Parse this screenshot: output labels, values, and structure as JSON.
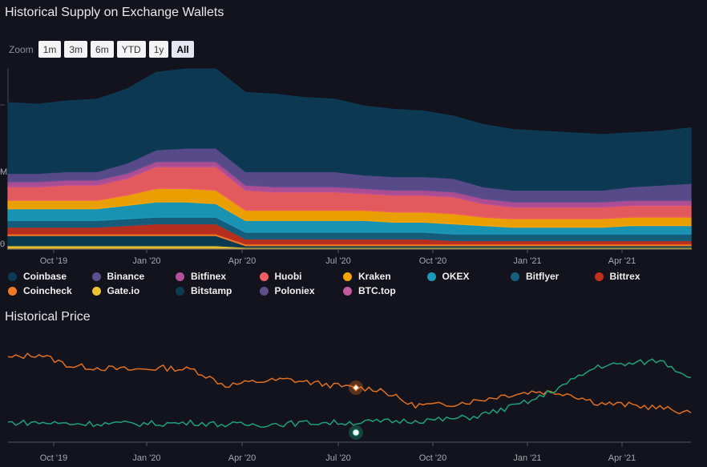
{
  "supply_section": {
    "title": "Historical Supply on Exchange Wallets",
    "zoom_label": "Zoom",
    "zoom_buttons": [
      "1m",
      "3m",
      "6m",
      "YTD",
      "1y",
      "All"
    ],
    "active_zoom": "All",
    "y_tick_labels": [
      "",
      "M",
      "0"
    ]
  },
  "price_section": {
    "title": "Historical Price"
  },
  "x_tick_labels": [
    "Oct '19",
    "Jan '20",
    "Apr '20",
    "Jul '20",
    "Oct '20",
    "Jan '21",
    "Apr '21"
  ],
  "legend": [
    {
      "name": "Coinbase",
      "color": "#0e3a55"
    },
    {
      "name": "Binance",
      "color": "#5b4e8e"
    },
    {
      "name": "Bitfinex",
      "color": "#b4509a"
    },
    {
      "name": "Huobi",
      "color": "#ee5e62"
    },
    {
      "name": "Kraken",
      "color": "#f6a500"
    },
    {
      "name": "OKEX",
      "color": "#1b9abb"
    },
    {
      "name": "Bitflyer",
      "color": "#15607e"
    },
    {
      "name": "Bittrex",
      "color": "#c0301f"
    },
    {
      "name": "Coincheck",
      "color": "#f47b25"
    },
    {
      "name": "Gate.io",
      "color": "#f0c330"
    },
    {
      "name": "Bitstamp",
      "color": "#0b3c52"
    },
    {
      "name": "Poloniex",
      "color": "#5e4e8c"
    },
    {
      "name": "BTC.top",
      "color": "#c45aa0"
    }
  ],
  "chart_data": [
    {
      "type": "area",
      "stacked": true,
      "x": [
        "2019-08",
        "2019-09",
        "2019-10",
        "2019-11",
        "2019-12",
        "2020-01",
        "2020-02",
        "2020-03",
        "2020-03-15",
        "2020-04",
        "2020-05",
        "2020-06",
        "2020-07",
        "2020-08",
        "2020-09",
        "2020-10",
        "2020-11",
        "2020-12",
        "2021-01",
        "2021-02",
        "2021-03",
        "2021-04",
        "2021-05",
        "2021-06"
      ],
      "series": [
        {
          "name": "Gate.io",
          "color": "#f0c330",
          "values": [
            2,
            2,
            2,
            2,
            2,
            2,
            2,
            2,
            1,
            1,
            1,
            1,
            1,
            1,
            1,
            1,
            1,
            1,
            1,
            1,
            1,
            1,
            1,
            1
          ]
        },
        {
          "name": "Bitstamp",
          "color": "#0b3c52",
          "values": [
            6,
            6,
            6,
            6,
            6,
            6,
            6,
            6,
            1,
            1,
            1,
            1,
            1,
            1,
            1,
            1,
            1,
            1,
            1,
            1,
            1,
            1,
            1,
            1
          ]
        },
        {
          "name": "Coincheck",
          "color": "#f47b25",
          "values": [
            1,
            1,
            1,
            1,
            1,
            1,
            1,
            1,
            1,
            1,
            1,
            1,
            1,
            1,
            1,
            1,
            1,
            1,
            1,
            1,
            1,
            1,
            1,
            1
          ]
        },
        {
          "name": "Bittrex",
          "color": "#c0301f",
          "values": [
            4,
            4,
            4,
            4,
            5,
            6,
            6,
            6,
            3,
            3,
            3,
            3,
            3,
            3,
            3,
            2,
            2,
            2,
            2,
            2,
            2,
            2,
            2,
            2
          ]
        },
        {
          "name": "Bitflyer",
          "color": "#15607e",
          "values": [
            4,
            4,
            4,
            4,
            4,
            4,
            4,
            4,
            4,
            4,
            4,
            4,
            4,
            4,
            4,
            4,
            4,
            4,
            4,
            4,
            4,
            4,
            4,
            4
          ]
        },
        {
          "name": "OKEX",
          "color": "#1b9abb",
          "values": [
            7,
            7,
            7,
            7,
            8,
            9,
            9,
            8,
            7,
            7,
            7,
            7,
            7,
            6,
            6,
            6,
            5,
            4,
            4,
            4,
            4,
            5,
            5,
            5
          ]
        },
        {
          "name": "Kraken",
          "color": "#f6a500",
          "values": [
            5,
            5,
            5,
            5,
            6,
            8,
            8,
            8,
            6,
            6,
            6,
            6,
            6,
            6,
            6,
            6,
            5,
            5,
            5,
            5,
            5,
            5,
            5,
            5
          ]
        },
        {
          "name": "Huobi",
          "color": "#ee5e62",
          "values": [
            8,
            8,
            9,
            9,
            10,
            13,
            13,
            14,
            12,
            11,
            11,
            11,
            10,
            10,
            10,
            10,
            8,
            7,
            7,
            7,
            7,
            7,
            7,
            7
          ]
        },
        {
          "name": "Bitfinex",
          "color": "#b4509a",
          "values": [
            3,
            3,
            3,
            3,
            3,
            3,
            3,
            3,
            3,
            3,
            3,
            3,
            3,
            3,
            3,
            3,
            3,
            3,
            3,
            3,
            3,
            3,
            3,
            3
          ]
        },
        {
          "name": "Binance",
          "color": "#5b4e8e",
          "values": [
            5,
            5,
            5,
            5,
            6,
            7,
            8,
            8,
            8,
            9,
            9,
            9,
            8,
            8,
            8,
            8,
            7,
            7,
            7,
            7,
            7,
            8,
            9,
            10
          ]
        },
        {
          "name": "Coinbase",
          "color": "#0e3a55",
          "values": [
            42,
            41,
            42,
            43,
            44,
            46,
            47,
            47,
            47,
            46,
            44,
            43,
            41,
            40,
            39,
            37,
            37,
            36,
            35,
            34,
            33,
            32,
            32,
            33
          ]
        }
      ]
    },
    {
      "type": "line",
      "x": [
        "2019-08",
        "2019-09",
        "2019-10",
        "2019-11",
        "2019-12",
        "2020-01",
        "2020-02",
        "2020-03",
        "2020-04",
        "2020-05",
        "2020-06",
        "2020-07",
        "2020-08",
        "2020-09",
        "2020-10",
        "2020-11",
        "2020-12",
        "2021-01",
        "2021-02",
        "2021-03",
        "2021-04",
        "2021-05",
        "2021-06"
      ],
      "series": [
        {
          "name": "Supply",
          "color": "#e07020",
          "values": [
            86,
            90,
            78,
            76,
            74,
            76,
            74,
            58,
            62,
            64,
            60,
            56,
            54,
            38,
            38,
            42,
            48,
            52,
            50,
            40,
            38,
            35,
            30
          ]
        },
        {
          "name": "Price",
          "color": "#1fa07a",
          "values": [
            20,
            20,
            19,
            19,
            19,
            19,
            20,
            18,
            18,
            19,
            20,
            20,
            21,
            22,
            23,
            26,
            34,
            44,
            60,
            78,
            80,
            84,
            66
          ]
        }
      ]
    }
  ]
}
